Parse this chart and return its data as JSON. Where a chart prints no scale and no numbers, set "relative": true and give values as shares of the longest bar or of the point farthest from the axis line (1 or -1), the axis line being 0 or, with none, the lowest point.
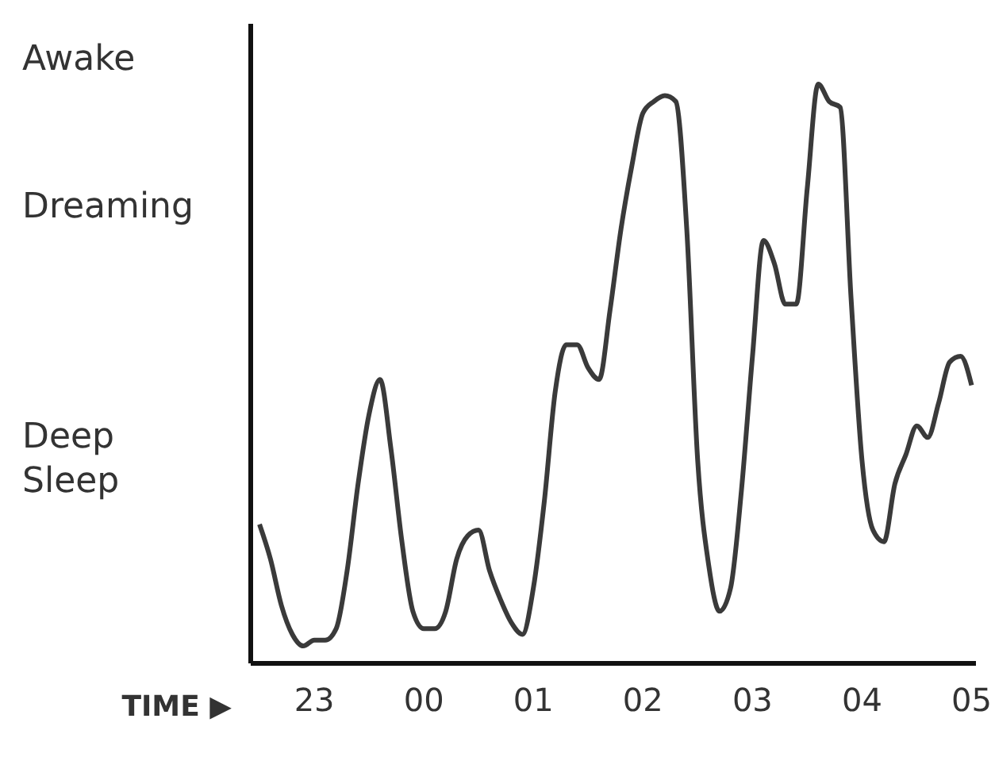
{
  "chart_data": {
    "type": "line",
    "relative": true,
    "xlabel": "TIME ▶",
    "annotations": [
      "Awake",
      "Dreaming",
      "Deep Sleep"
    ],
    "categories": [
      null,
      null,
      null,
      null,
      null,
      "23",
      null,
      null,
      null,
      null,
      null,
      null,
      null,
      null,
      null,
      "00",
      null,
      null,
      null,
      null,
      null,
      null,
      null,
      null,
      null,
      "01",
      null,
      null,
      null,
      null,
      null,
      null,
      null,
      null,
      null,
      "02",
      null,
      null,
      null,
      null,
      null,
      null,
      null,
      null,
      null,
      "03",
      null,
      null,
      null,
      null,
      null,
      null,
      null,
      null,
      null,
      "04",
      null,
      null,
      null,
      null,
      null,
      null,
      null,
      null,
      null,
      "05"
    ],
    "series": [
      {
        "color": "#3a3a3a",
        "values": [
          0.24,
          0.18,
          0.1,
          0.05,
          0.03,
          0.04,
          0.04,
          0.06,
          0.16,
          0.31,
          0.43,
          0.49,
          0.37,
          0.21,
          0.09,
          0.06,
          0.06,
          0.09,
          0.18,
          0.22,
          0.23,
          0.16,
          0.11,
          0.07,
          0.05,
          0.13,
          0.28,
          0.47,
          0.55,
          0.55,
          0.51,
          0.49,
          0.61,
          0.75,
          0.86,
          0.95,
          0.97,
          0.98,
          0.97,
          0.75,
          0.35,
          0.17,
          0.09,
          0.13,
          0.3,
          0.53,
          0.73,
          0.69,
          0.62,
          0.62,
          0.82,
          1,
          0.97,
          0.96,
          0.63,
          0.35,
          0.23,
          0.21,
          0.31,
          0.36,
          0.41,
          0.39,
          0.45,
          0.52,
          0.53,
          0.48
        ]
      }
    ],
    "marker": "none",
    "line_style": "solid"
  }
}
